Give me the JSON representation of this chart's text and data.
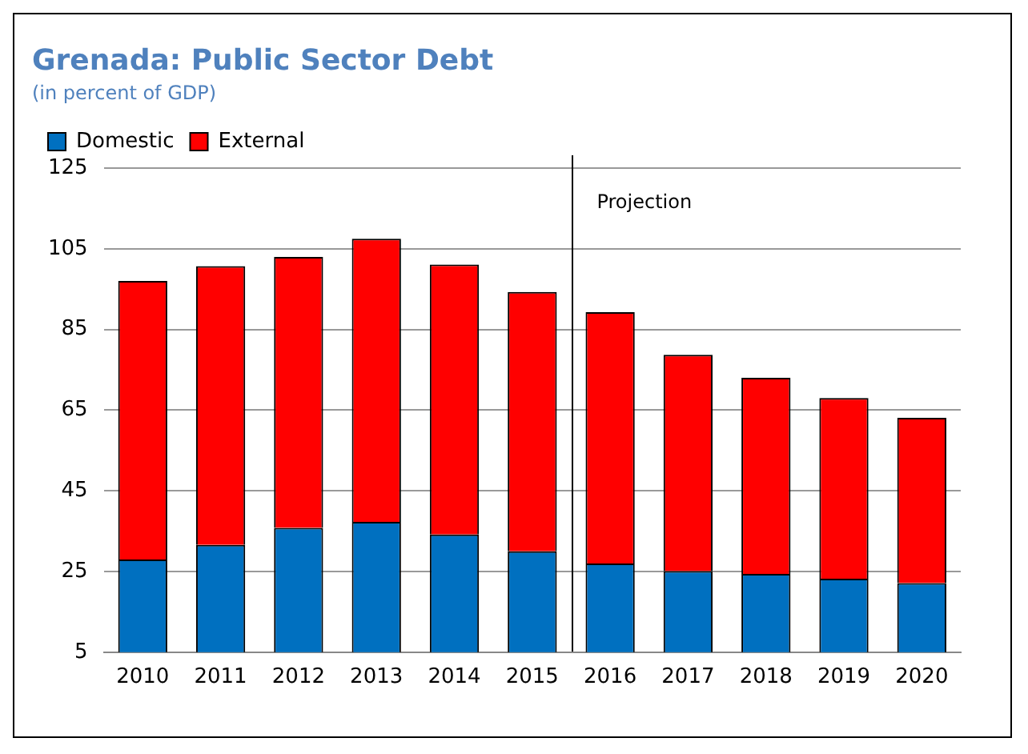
{
  "chart_data": {
    "type": "bar",
    "title": "Grenada: Public Sector Debt",
    "subtitle": "(in percent of GDP)",
    "categories": [
      "2010",
      "2011",
      "2012",
      "2013",
      "2014",
      "2015",
      "2016",
      "2017",
      "2018",
      "2019",
      "2020"
    ],
    "series": [
      {
        "name": "Domestic",
        "color": "#0070c0",
        "values": [
          28,
          31.6,
          35.8,
          37.3,
          34.2,
          30,
          27,
          25.1,
          24.4,
          23.2,
          22.1
        ]
      },
      {
        "name": "External",
        "color": "#ff0000",
        "values": [
          69,
          69.1,
          67.2,
          70.2,
          66.9,
          64.3,
          62.3,
          53.6,
          48.6,
          44.8,
          41
        ]
      }
    ],
    "stacked": true,
    "ylim": [
      5,
      125
    ],
    "yticks": [
      5,
      25,
      45,
      65,
      85,
      105,
      125
    ],
    "grid": "y",
    "legend": "top left",
    "annotations": [
      "Projection"
    ]
  }
}
